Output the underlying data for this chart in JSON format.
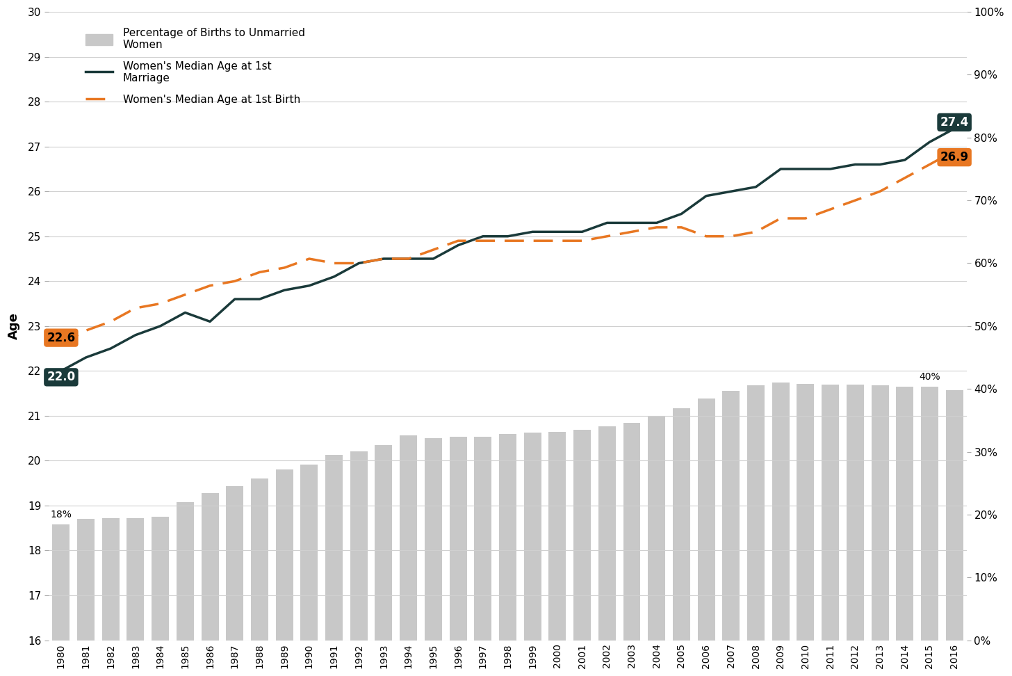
{
  "years": [
    1980,
    1981,
    1982,
    1983,
    1984,
    1985,
    1986,
    1987,
    1988,
    1989,
    1990,
    1991,
    1992,
    1993,
    1994,
    1995,
    1996,
    1997,
    1998,
    1999,
    2000,
    2001,
    2002,
    2003,
    2004,
    2005,
    2006,
    2007,
    2008,
    2009,
    2010,
    2011,
    2012,
    2013,
    2014,
    2015,
    2016
  ],
  "marriage_age": [
    22.0,
    22.3,
    22.5,
    22.8,
    23.0,
    23.3,
    23.1,
    23.6,
    23.6,
    23.8,
    23.9,
    24.1,
    24.4,
    24.5,
    24.5,
    24.5,
    24.8,
    25.0,
    25.0,
    25.1,
    25.1,
    25.1,
    25.3,
    25.3,
    25.3,
    25.5,
    25.9,
    26.0,
    26.1,
    26.5,
    26.5,
    26.5,
    26.6,
    26.6,
    26.7,
    27.1,
    27.4
  ],
  "birth_age": [
    22.6,
    22.9,
    23.1,
    23.4,
    23.5,
    23.7,
    23.9,
    24.0,
    24.2,
    24.3,
    24.5,
    24.4,
    24.4,
    24.5,
    24.5,
    24.7,
    24.9,
    24.9,
    24.9,
    24.9,
    24.9,
    24.9,
    25.0,
    25.1,
    25.2,
    25.2,
    25.0,
    25.0,
    25.1,
    25.4,
    25.4,
    25.6,
    25.8,
    26.0,
    26.3,
    26.6,
    26.9
  ],
  "bar_pct": [
    18.4,
    19.3,
    19.4,
    19.4,
    19.6,
    22.0,
    23.4,
    24.5,
    25.7,
    27.2,
    28.0,
    29.5,
    30.1,
    31.0,
    32.6,
    32.2,
    32.4,
    32.4,
    32.8,
    33.0,
    33.2,
    33.5,
    34.0,
    34.6,
    35.7,
    36.9,
    38.5,
    39.7,
    40.6,
    41.0,
    40.8,
    40.7,
    40.7,
    40.6,
    40.3,
    40.3,
    39.8
  ],
  "marriage_color": "#1a3a3a",
  "birth_color": "#e87722",
  "bar_color": "#c8c8c8",
  "bg_color": "#ffffff",
  "left_ylim": [
    16,
    30
  ],
  "right_ylim": [
    0,
    100
  ],
  "yticks_left": [
    16,
    17,
    18,
    19,
    20,
    21,
    22,
    23,
    24,
    25,
    26,
    27,
    28,
    29,
    30
  ],
  "yticks_right_pct": [
    0,
    10,
    20,
    30,
    40,
    50,
    60,
    70,
    80,
    90,
    100
  ],
  "ylabel_left": "Age",
  "start_label_marriage": "22.0",
  "start_label_birth": "22.6",
  "end_label_marriage": "27.4",
  "end_label_birth": "26.9",
  "pct_1980_label": "18%",
  "pct_2015_label": "40%",
  "legend_bar": "Percentage of Births to Unmarried\nWomen",
  "legend_marriage": "Women's Median Age at 1st\nMarriage",
  "legend_birth": "Women's Median Age at 1st Birth"
}
